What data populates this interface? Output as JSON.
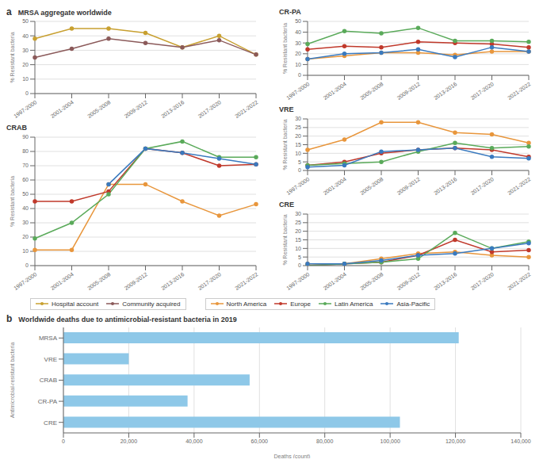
{
  "chart_data": [
    {
      "type": "line",
      "title": "MRSA aggregate worldwide",
      "annotations": [
        "a"
      ],
      "categories": [
        "1997-2000",
        "2001-2004",
        "2005-2008",
        "2009-2012",
        "2013-2016",
        "2017-2020",
        "2021-2022"
      ],
      "series": [
        {
          "name": "Hospital account",
          "color": "#c8a030",
          "values": [
            38,
            45,
            45,
            42,
            32,
            40,
            27
          ]
        },
        {
          "name": "Community acquired",
          "color": "#8b5a5a",
          "values": [
            25,
            31,
            38,
            35,
            32,
            37,
            27
          ]
        }
      ],
      "ylabel": "% Resistant bacteria",
      "ylim": [
        0,
        50
      ],
      "yticks": [
        0,
        10,
        20,
        30,
        40,
        50
      ],
      "grid": true,
      "marker": "circle",
      "legend": "bottom"
    },
    {
      "type": "line",
      "title": "CRAB",
      "categories": [
        "1997-2000",
        "2001-2004",
        "2005-2008",
        "2009-2012",
        "2013-2016",
        "2017-2020",
        "2021-2022"
      ],
      "series": [
        {
          "name": "North America",
          "color": "#e8963c",
          "values": [
            11,
            11,
            57,
            57,
            45,
            35,
            43
          ]
        },
        {
          "name": "Europe",
          "color": "#c0392b",
          "values": [
            45,
            45,
            52,
            82,
            79,
            70,
            71
          ]
        },
        {
          "name": "Latin America",
          "color": "#5aaa5a",
          "values": [
            19,
            30,
            50,
            82,
            87,
            76,
            76
          ]
        },
        {
          "name": "Asia-Pacific",
          "color": "#3a7abf",
          "values": [
            null,
            null,
            57,
            82,
            79,
            75,
            71
          ]
        }
      ],
      "ylabel": "% Resistant bacteria",
      "ylim": [
        0,
        90
      ],
      "yticks": [
        0,
        10,
        20,
        30,
        40,
        50,
        60,
        70,
        80,
        90
      ],
      "grid": true,
      "marker": "circle"
    },
    {
      "type": "line",
      "title": "CR-PA",
      "categories": [
        "1997-2000",
        "2001-2004",
        "2005-2008",
        "2009-2012",
        "2013-2016",
        "2017-2020",
        "2021-2022"
      ],
      "series": [
        {
          "name": "North America",
          "color": "#e8963c",
          "values": [
            15,
            18,
            21,
            21,
            19,
            22,
            22
          ]
        },
        {
          "name": "Europe",
          "color": "#c0392b",
          "values": [
            24,
            27,
            26,
            31,
            30,
            29,
            26
          ]
        },
        {
          "name": "Latin America",
          "color": "#5aaa5a",
          "values": [
            29,
            41,
            39,
            44,
            32,
            32,
            31
          ]
        },
        {
          "name": "Asia-Pacific",
          "color": "#3a7abf",
          "values": [
            15,
            20,
            21,
            24,
            17,
            26,
            22
          ]
        }
      ],
      "ylabel": "% Resistant bacteria",
      "ylim": [
        0,
        50
      ],
      "yticks": [
        0,
        10,
        20,
        30,
        40,
        50
      ],
      "grid": true,
      "marker": "circle",
      "legend": "bottom"
    },
    {
      "type": "line",
      "title": "VRE",
      "categories": [
        "1997-2000",
        "2001-2004",
        "2005-2008",
        "2009-2012",
        "2013-2016",
        "2017-2020",
        "2021-2022"
      ],
      "series": [
        {
          "name": "North America",
          "color": "#e8963c",
          "values": [
            12,
            18,
            28,
            28,
            22,
            21,
            16
          ]
        },
        {
          "name": "Europe",
          "color": "#c0392b",
          "values": [
            3,
            5,
            10,
            12,
            13,
            12,
            8
          ]
        },
        {
          "name": "Latin America",
          "color": "#5aaa5a",
          "values": [
            3,
            4,
            5,
            11,
            16,
            13,
            14
          ]
        },
        {
          "name": "Asia-Pacific",
          "color": "#3a7abf",
          "values": [
            2,
            3,
            11,
            12,
            13,
            8,
            7
          ]
        }
      ],
      "ylabel": "% Resistant bacteria",
      "ylim": [
        0,
        30
      ],
      "yticks": [
        0,
        5,
        10,
        15,
        20,
        25,
        30
      ],
      "grid": true,
      "marker": "circle"
    },
    {
      "type": "line",
      "title": "CRE",
      "categories": [
        "1997-2000",
        "2001-2004",
        "2005-2008",
        "2009-2012",
        "2013-2016",
        "2017-2020",
        "2021-2022"
      ],
      "series": [
        {
          "name": "North America",
          "color": "#e8963c",
          "values": [
            1,
            1,
            4,
            7,
            8,
            6,
            5
          ]
        },
        {
          "name": "Europe",
          "color": "#c0392b",
          "values": [
            0,
            1,
            2,
            6,
            15,
            8,
            9
          ]
        },
        {
          "name": "Latin America",
          "color": "#5aaa5a",
          "values": [
            0,
            1,
            2,
            4,
            19,
            10,
            14
          ]
        },
        {
          "name": "Asia-Pacific",
          "color": "#3a7abf",
          "values": [
            1,
            1,
            3,
            6,
            7,
            10,
            13
          ]
        }
      ],
      "ylabel": "% Resistant bacteria",
      "ylim": [
        0,
        30
      ],
      "yticks": [
        0,
        5,
        10,
        15,
        20,
        25,
        30
      ],
      "grid": true,
      "marker": "circle"
    },
    {
      "type": "bar",
      "orientation": "horizontal",
      "title": "Worldwide deaths due to antimicrobial-resistant bacteria in 2019",
      "annotations": [
        "b"
      ],
      "categories": [
        "CRE",
        "CR-PA",
        "CRAB",
        "VRE",
        "MRSA"
      ],
      "values": [
        103000,
        38000,
        57000,
        20000,
        121000
      ],
      "color": "#8ec8e8",
      "xlabel": "Deaths (count)",
      "ylabel": "Antimicrobial-resistant bacteria",
      "xlim": [
        0,
        140000
      ],
      "xticks": [
        0,
        {
          "value": 20000,
          "label": "20,000"
        },
        {
          "value": 40000,
          "label": "40,000"
        },
        {
          "value": 60000,
          "label": "60,000"
        },
        {
          "value": 80000,
          "label": "80,000"
        },
        {
          "value": 100000,
          "label": "100,000"
        },
        {
          "value": 120000,
          "label": "120,000"
        },
        {
          "value": 140000,
          "label": "140,000"
        }
      ],
      "grid": true
    }
  ]
}
